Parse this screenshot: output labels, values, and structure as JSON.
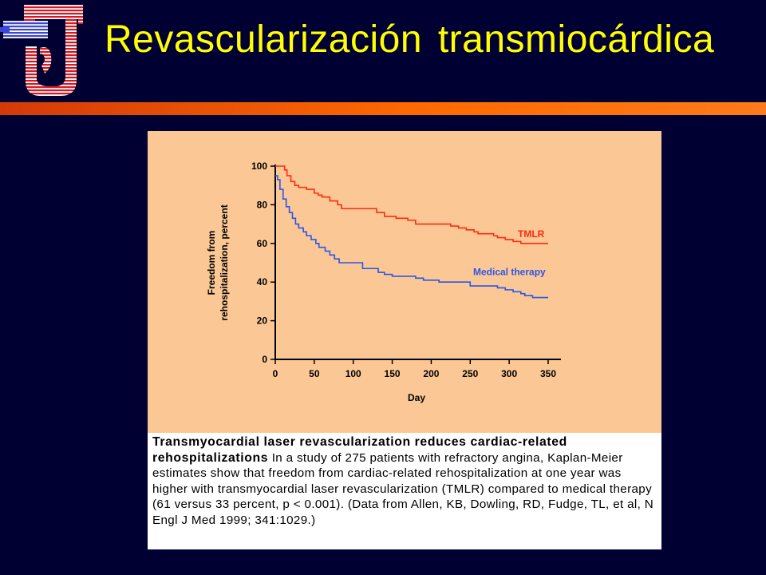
{
  "slide": {
    "title": "Revascularización transmiocárdica",
    "colors": {
      "background": "#000033",
      "title": "#FFFF00",
      "rule": "#FF6A00"
    },
    "logo": "cross-and-heart-logo-icon"
  },
  "caption": {
    "title": "Transmyocardial laser revascularization reduces cardiac-related rehospitalizations",
    "body": "In a study of 275 patients with refractory angina, Kaplan-Meier estimates show that freedom from cardiac-related rehospitalization at one year was higher with transmyocardial laser revascularization (TMLR) compared to medical therapy (61 versus 33 percent, p < 0.001). (Data from Allen, KB, Dowling, RD, Fudge, TL, et al, N Engl J Med 1999; 341:1029.)"
  },
  "chart_data": {
    "type": "line",
    "step": true,
    "xlabel": "Day",
    "ylabel": [
      "Freedom from",
      "rehospitalization, percent"
    ],
    "xlim": [
      0,
      350
    ],
    "ylim": [
      0,
      100
    ],
    "xticks": [
      0,
      50,
      100,
      150,
      200,
      250,
      300,
      350
    ],
    "yticks": [
      0,
      20,
      40,
      60,
      80,
      100
    ],
    "grid": false,
    "background": "#FBC895",
    "series": [
      {
        "name": "TMLR",
        "color": "#FF2A10",
        "points": [
          [
            0,
            100
          ],
          [
            8,
            100
          ],
          [
            12,
            98
          ],
          [
            15,
            95
          ],
          [
            20,
            92
          ],
          [
            25,
            90
          ],
          [
            30,
            89
          ],
          [
            40,
            88
          ],
          [
            50,
            86
          ],
          [
            55,
            85
          ],
          [
            60,
            84
          ],
          [
            70,
            82
          ],
          [
            80,
            80
          ],
          [
            85,
            78
          ],
          [
            110,
            78
          ],
          [
            130,
            76
          ],
          [
            140,
            74
          ],
          [
            155,
            73
          ],
          [
            170,
            72
          ],
          [
            180,
            70
          ],
          [
            220,
            70
          ],
          [
            225,
            69
          ],
          [
            235,
            68
          ],
          [
            245,
            67
          ],
          [
            255,
            66
          ],
          [
            260,
            65
          ],
          [
            280,
            64
          ],
          [
            285,
            63
          ],
          [
            295,
            62
          ],
          [
            305,
            61
          ],
          [
            315,
            60
          ],
          [
            350,
            60
          ]
        ]
      },
      {
        "name": "Medical therapy",
        "color": "#2A55E8",
        "points": [
          [
            0,
            95
          ],
          [
            3,
            93
          ],
          [
            6,
            88
          ],
          [
            10,
            83
          ],
          [
            14,
            79
          ],
          [
            18,
            76
          ],
          [
            22,
            73
          ],
          [
            26,
            70
          ],
          [
            30,
            68
          ],
          [
            36,
            66
          ],
          [
            40,
            64
          ],
          [
            46,
            62
          ],
          [
            52,
            60
          ],
          [
            56,
            58
          ],
          [
            64,
            56
          ],
          [
            70,
            54
          ],
          [
            76,
            52
          ],
          [
            82,
            50
          ],
          [
            110,
            50
          ],
          [
            112,
            47
          ],
          [
            130,
            47
          ],
          [
            132,
            45
          ],
          [
            140,
            44
          ],
          [
            150,
            43
          ],
          [
            175,
            43
          ],
          [
            180,
            42
          ],
          [
            190,
            41
          ],
          [
            210,
            40
          ],
          [
            245,
            40
          ],
          [
            250,
            38
          ],
          [
            275,
            38
          ],
          [
            285,
            37
          ],
          [
            295,
            36
          ],
          [
            305,
            35
          ],
          [
            315,
            34
          ],
          [
            320,
            33
          ],
          [
            330,
            32
          ],
          [
            350,
            32
          ]
        ]
      }
    ]
  }
}
